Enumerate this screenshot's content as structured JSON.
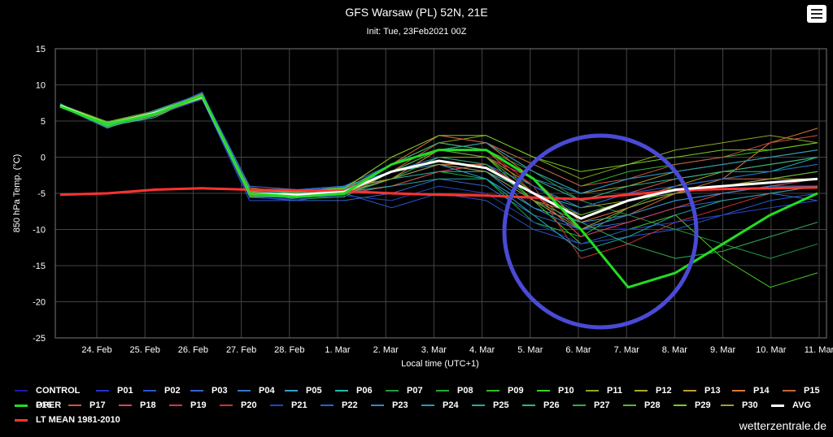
{
  "header": {
    "title": "GFS Warsaw (PL) 52N, 21E",
    "subtitle": "Init: Tue, 23Feb2021 00Z",
    "menu_icon": "hamburger-menu-icon"
  },
  "credit": "wetterzentrale.de",
  "colors": {
    "background": "#000000",
    "grid": "#444444",
    "avg": "#ffffff",
    "oper": "#22dd22",
    "lt_mean": "#ff3333",
    "annotation_circle": "#4a4ad6"
  },
  "chart_data": {
    "type": "line",
    "xlabel": "Local time (UTC+1)",
    "ylabel": "850 hPa Temp. (°C)",
    "ylim": [
      -25,
      15
    ],
    "yticks": [
      15,
      10,
      5,
      0,
      -5,
      -10,
      -15,
      -20,
      -25
    ],
    "xlim": [
      "2021-02-23T04:00",
      "2021-03-11T06:00"
    ],
    "xticks": [
      "24. Feb",
      "25. Feb",
      "26. Feb",
      "27. Feb",
      "28. Feb",
      "1. Mar",
      "2. Mar",
      "3. Mar",
      "4. Mar",
      "5. Mar",
      "6. Mar",
      "7. Mar",
      "8. Mar",
      "9. Mar",
      "10. Mar",
      "11. Mar"
    ],
    "grid": true,
    "legend_position": "bottom",
    "x": [
      "23 Feb",
      "24 Feb",
      "25 Feb",
      "26 Feb",
      "27 Feb",
      "28 Feb",
      "1 Mar",
      "2 Mar",
      "3 Mar",
      "4 Mar",
      "5 Mar",
      "6 Mar",
      "7 Mar",
      "8 Mar",
      "9 Mar",
      "10 Mar",
      "11 Mar"
    ],
    "series": [
      {
        "name": "CONTROL",
        "color": "#1a1aaa",
        "values": [
          7,
          4.5,
          6,
          8,
          -4.5,
          -5,
          -4.5,
          -3,
          -1,
          -2,
          -6,
          -9,
          -10,
          -9,
          -8,
          -7,
          -6
        ]
      },
      {
        "name": "P01",
        "color": "#2233cc",
        "values": [
          7.2,
          4.8,
          6.2,
          8.5,
          -5,
          -5.5,
          -5,
          -2,
          0,
          -1,
          -4,
          -8,
          -6,
          -5,
          -4,
          -3,
          -2
        ]
      },
      {
        "name": "P02",
        "color": "#2a55cc",
        "values": [
          7,
          4.2,
          5.8,
          8,
          -6,
          -6,
          -5,
          -7,
          -5,
          -6,
          -10,
          -12,
          -11,
          -10,
          -8,
          -6,
          -5
        ]
      },
      {
        "name": "P03",
        "color": "#3366cc",
        "values": [
          7.3,
          4.5,
          6,
          9,
          -5.5,
          -6,
          -6,
          -5,
          -3,
          -4,
          -8,
          -10,
          -9,
          -7,
          -6,
          -5,
          -6
        ]
      },
      {
        "name": "P04",
        "color": "#3377cc",
        "values": [
          7,
          4,
          6.5,
          8.8,
          -4,
          -4.5,
          -4,
          -1,
          1,
          0,
          -3,
          -5,
          -3,
          -2,
          -1,
          0,
          1
        ]
      },
      {
        "name": "P05",
        "color": "#33a0d0",
        "values": [
          7.1,
          4.6,
          6,
          8,
          -5,
          -5,
          -4,
          -2,
          -1,
          -3,
          -7,
          -9,
          -8,
          -6,
          -5,
          -4,
          -3
        ]
      },
      {
        "name": "P06",
        "color": "#22bbaa",
        "values": [
          7.4,
          4.3,
          5.5,
          8.6,
          -4.5,
          -5,
          -5,
          -3,
          -2,
          -2,
          -5,
          -7,
          -5,
          -3,
          -2,
          -2,
          0
        ]
      },
      {
        "name": "P07",
        "color": "#229944",
        "values": [
          7,
          4.7,
          6.3,
          8.2,
          -5,
          -5.5,
          -5,
          -1,
          2,
          1,
          -2,
          -6,
          -8,
          -10,
          -12,
          -14,
          -12
        ]
      },
      {
        "name": "P08",
        "color": "#22aa33",
        "values": [
          7.2,
          4.4,
          6.1,
          8.4,
          -5.2,
          -5.2,
          -4.8,
          -4,
          -2,
          -3,
          -9,
          -11,
          -7,
          -4,
          -3,
          -2,
          -1
        ]
      },
      {
        "name": "P09",
        "color": "#33bb22",
        "values": [
          7,
          4.1,
          5.9,
          8.1,
          -4.8,
          -5.8,
          -5.5,
          -2,
          1,
          2,
          -1,
          -4,
          -2,
          -1,
          0,
          1,
          2
        ]
      },
      {
        "name": "P10",
        "color": "#44cc22",
        "values": [
          7.3,
          4.9,
          6.4,
          8.7,
          -5.3,
          -4.8,
          -4.2,
          -3,
          0,
          0,
          -6,
          -12,
          -10,
          -8,
          -14,
          -18,
          -16
        ]
      },
      {
        "name": "P11",
        "color": "#88aa22",
        "values": [
          7,
          4.5,
          6.2,
          8,
          -4.2,
          -5,
          -4.5,
          -1,
          2,
          3,
          0,
          -3,
          -1,
          1,
          2,
          3,
          2
        ]
      },
      {
        "name": "P12",
        "color": "#aaaa22",
        "values": [
          7.1,
          4.2,
          5.7,
          8.3,
          -5.5,
          -5.5,
          -5,
          -2,
          0,
          0,
          -4,
          -7,
          -6,
          -4,
          -2,
          -1,
          0
        ]
      },
      {
        "name": "P13",
        "color": "#c09933",
        "values": [
          7.2,
          4.6,
          6.1,
          8.5,
          -4.7,
          -4.7,
          -4.3,
          -3,
          1,
          2,
          -2,
          -5,
          -4,
          -2,
          -1,
          0,
          1
        ]
      },
      {
        "name": "P14",
        "color": "#dd7733",
        "values": [
          7,
          4.3,
          6,
          8.2,
          -5.1,
          -5.3,
          -4.6,
          -1,
          3,
          2,
          -3,
          -9,
          -7,
          -5,
          -3,
          2,
          4
        ]
      },
      {
        "name": "P15",
        "color": "#cc6633",
        "values": [
          7.3,
          4.8,
          6.3,
          8.8,
          -4.9,
          -5.1,
          -5.2,
          -2,
          2,
          1,
          -5,
          -10,
          -8,
          -5,
          -4,
          -3,
          -2
        ]
      },
      {
        "name": "P16",
        "color": "#cc7744",
        "values": [
          7.1,
          4.4,
          5.8,
          8.1,
          -5.4,
          -5.6,
          -4.9,
          -3,
          -1,
          -1,
          -6,
          -8,
          -6,
          -4,
          -3,
          -3,
          -2
        ]
      },
      {
        "name": "P17",
        "color": "#cc5544",
        "values": [
          7,
          4.6,
          6.2,
          8.4,
          -4.6,
          -4.9,
          -4.4,
          0,
          3,
          2,
          -1,
          -4,
          -3,
          -1,
          0,
          2,
          3
        ]
      },
      {
        "name": "P18",
        "color": "#dd4455",
        "values": [
          7.2,
          4.2,
          6,
          8.6,
          -5.2,
          -5.4,
          -5.1,
          -4,
          -2,
          -1,
          -5,
          -11,
          -9,
          -7,
          -5,
          -4,
          -3
        ]
      },
      {
        "name": "P19",
        "color": "#dd3344",
        "values": [
          7.1,
          4.7,
          6.4,
          8.3,
          -4.8,
          -5.2,
          -4.7,
          -2,
          1,
          0,
          -3,
          -6,
          -5,
          -3,
          -2,
          -1,
          0
        ]
      },
      {
        "name": "P20",
        "color": "#cc3333",
        "values": [
          7,
          4.5,
          6.1,
          8.7,
          -5,
          -5,
          -4.5,
          -1,
          2,
          1,
          -4,
          -14,
          -12,
          -9,
          -7,
          -5,
          -4
        ]
      },
      {
        "name": "P21",
        "color": "#2244bb",
        "values": [
          7.3,
          4.3,
          5.9,
          8,
          -5.6,
          -5.8,
          -5.3,
          -6,
          -4,
          -5,
          -9,
          -12,
          -10,
          -9,
          -8,
          -7,
          -6
        ]
      },
      {
        "name": "P22",
        "color": "#2266cc",
        "values": [
          7,
          4.8,
          6.2,
          8.9,
          -4.4,
          -4.6,
          -4.1,
          -2,
          0,
          -1,
          -4,
          -7,
          -5,
          -4,
          -3,
          -2,
          -1
        ]
      },
      {
        "name": "P23",
        "color": "#3388cc",
        "values": [
          7.2,
          4.4,
          6,
          8.4,
          -5.3,
          -5.5,
          -5,
          -3,
          -1,
          -2,
          -7,
          -10,
          -8,
          -6,
          -5,
          -4,
          -4
        ]
      },
      {
        "name": "P24",
        "color": "#2299bb",
        "values": [
          7.1,
          4.6,
          6.3,
          8.2,
          -4.9,
          -5.1,
          -4.6,
          -2,
          1,
          2,
          -2,
          -5,
          -3,
          -2,
          -1,
          0,
          1
        ]
      },
      {
        "name": "P25",
        "color": "#22aaaa",
        "values": [
          7,
          4.2,
          5.8,
          8.6,
          -5.1,
          -5.3,
          -4.8,
          -4,
          -3,
          -3,
          -8,
          -13,
          -11,
          -8,
          -6,
          -5,
          -4
        ]
      },
      {
        "name": "P26",
        "color": "#22bb88",
        "values": [
          7.3,
          4.7,
          6.1,
          8.1,
          -4.7,
          -4.9,
          -4.4,
          -1,
          2,
          1,
          -3,
          -6,
          -4,
          -3,
          -2,
          -1,
          0
        ]
      },
      {
        "name": "P27",
        "color": "#33aa55",
        "values": [
          7.1,
          4.5,
          6.4,
          8.5,
          -5.4,
          -5.6,
          -5.2,
          -3,
          0,
          -1,
          -6,
          -9,
          -12,
          -14,
          -13,
          -11,
          -9
        ]
      },
      {
        "name": "P28",
        "color": "#55bb33",
        "values": [
          7,
          4.3,
          6,
          8.3,
          -5,
          -5.2,
          -4.7,
          -2,
          1,
          0,
          -5,
          -8,
          -6,
          -5,
          -4,
          -3,
          -2
        ]
      },
      {
        "name": "P29",
        "color": "#77cc22",
        "values": [
          7.2,
          4.8,
          6.2,
          8.7,
          -4.6,
          -4.8,
          -4.3,
          0,
          3,
          3,
          0,
          -2,
          -1,
          0,
          1,
          1,
          2
        ]
      },
      {
        "name": "P30",
        "color": "#aa9933",
        "values": [
          7.1,
          4.4,
          5.9,
          8.2,
          -5.2,
          -5.4,
          -4.9,
          -3,
          -1,
          -2,
          -6,
          -10,
          -7,
          -5,
          -4,
          -3,
          -3
        ]
      },
      {
        "name": "AVG",
        "color": "#ffffff",
        "values": [
          7.1,
          4.5,
          6.1,
          8.4,
          -5,
          -5.2,
          -4.8,
          -2,
          -0.5,
          -1.5,
          -5,
          -8.5,
          -6,
          -4.5,
          -4,
          -3.5,
          -3
        ]
      },
      {
        "name": "OPER",
        "color": "#22dd22",
        "values": [
          7,
          4.5,
          6,
          8.5,
          -5,
          -5.5,
          -5,
          -1,
          1,
          1,
          -3,
          -10,
          -18,
          -16,
          -12,
          -8,
          -5
        ]
      },
      {
        "name": "LT MEAN 1981-2010",
        "color": "#ff3333",
        "values": [
          -5.2,
          -5,
          -4.5,
          -4.3,
          -4.5,
          -4.6,
          -4.7,
          -5,
          -5.2,
          -5.3,
          -5.6,
          -5.8,
          -5.2,
          -4.6,
          -4.4,
          -4.3,
          -4.2
        ]
      }
    ]
  }
}
